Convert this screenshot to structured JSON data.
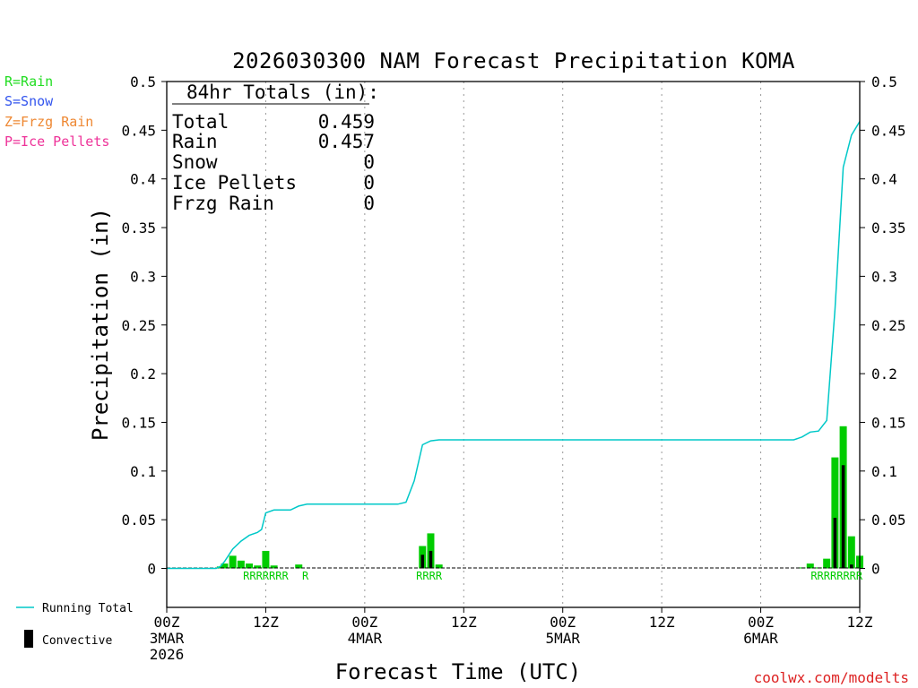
{
  "chart_data": {
    "type": "bar",
    "title": "2026030300 NAM Forecast Precipitation KOMA",
    "xlabel": "Forecast Time (UTC)",
    "ylabel": "Precipitation (in)",
    "ylim": [
      -0.04,
      0.5
    ],
    "xlim_hours": [
      0,
      84
    ],
    "y_ticks": [
      {
        "value": 0,
        "label": "0"
      },
      {
        "value": 0.05,
        "label": "0.05"
      },
      {
        "value": 0.1,
        "label": "0.1"
      },
      {
        "value": 0.15,
        "label": "0.15"
      },
      {
        "value": 0.2,
        "label": "0.2"
      },
      {
        "value": 0.25,
        "label": "0.25"
      },
      {
        "value": 0.3,
        "label": "0.3"
      },
      {
        "value": 0.35,
        "label": "0.35"
      },
      {
        "value": 0.4,
        "label": "0.4"
      },
      {
        "value": 0.45,
        "label": "0.45"
      },
      {
        "value": 0.5,
        "label": "0.5"
      }
    ],
    "x_ticks": [
      {
        "hour": 0,
        "lines": [
          "00Z",
          "3MAR",
          "2026"
        ]
      },
      {
        "hour": 12,
        "lines": [
          "12Z"
        ]
      },
      {
        "hour": 24,
        "lines": [
          "00Z",
          "4MAR"
        ]
      },
      {
        "hour": 36,
        "lines": [
          "12Z"
        ]
      },
      {
        "hour": 48,
        "lines": [
          "00Z",
          "5MAR"
        ]
      },
      {
        "hour": 60,
        "lines": [
          "12Z"
        ]
      },
      {
        "hour": 72,
        "lines": [
          "00Z",
          "6MAR"
        ]
      },
      {
        "hour": 84,
        "lines": [
          "12Z"
        ]
      }
    ],
    "grid_hours": [
      12,
      24,
      36,
      48,
      60,
      72
    ],
    "series": [
      {
        "name": "Rain",
        "color": "#00cc00",
        "points": [
          {
            "hour": 6.5,
            "value": 0.002
          },
          {
            "hour": 7,
            "value": 0.005
          },
          {
            "hour": 8,
            "value": 0.013
          },
          {
            "hour": 9,
            "value": 0.008
          },
          {
            "hour": 10,
            "value": 0.005
          },
          {
            "hour": 11,
            "value": 0.003
          },
          {
            "hour": 12,
            "value": 0.018
          },
          {
            "hour": 13,
            "value": 0.003
          },
          {
            "hour": 16,
            "value": 0.004
          },
          {
            "hour": 31,
            "value": 0.023
          },
          {
            "hour": 32,
            "value": 0.036
          },
          {
            "hour": 33,
            "value": 0.004
          },
          {
            "hour": 77,
            "value": 0.001
          },
          {
            "hour": 78,
            "value": 0.005
          },
          {
            "hour": 79,
            "value": 0.001
          },
          {
            "hour": 80,
            "value": 0.01
          },
          {
            "hour": 81,
            "value": 0.114
          },
          {
            "hour": 82,
            "value": 0.146
          },
          {
            "hour": 83,
            "value": 0.033
          },
          {
            "hour": 84,
            "value": 0.013
          }
        ]
      },
      {
        "name": "Convective",
        "color": "#000000",
        "points": [
          {
            "hour": 31,
            "value": 0.014
          },
          {
            "hour": 32,
            "value": 0.018
          },
          {
            "hour": 81,
            "value": 0.052
          },
          {
            "hour": 82,
            "value": 0.106
          },
          {
            "hour": 83,
            "value": 0.004
          }
        ]
      },
      {
        "name": "Running Total",
        "type": "line",
        "color": "#00c8c8",
        "x": [
          0,
          6,
          6.5,
          7,
          8,
          9,
          10,
          11,
          11.5,
          12,
          13,
          14,
          15,
          16,
          17,
          18,
          24,
          28,
          29,
          30,
          31,
          32,
          33,
          34,
          36,
          48,
          60,
          72,
          76,
          77,
          78,
          79,
          80,
          81,
          82,
          83,
          84
        ],
        "values": [
          0,
          0,
          0.002,
          0.007,
          0.02,
          0.028,
          0.034,
          0.037,
          0.04,
          0.057,
          0.06,
          0.06,
          0.06,
          0.064,
          0.066,
          0.066,
          0.066,
          0.066,
          0.068,
          0.09,
          0.127,
          0.131,
          0.132,
          0.132,
          0.132,
          0.132,
          0.132,
          0.132,
          0.132,
          0.135,
          0.14,
          0.141,
          0.152,
          0.266,
          0.412,
          0.445,
          0.459
        ]
      }
    ],
    "ptype_labels": [
      {
        "hour": 12,
        "text": "RRRRRRR"
      },
      {
        "hour": 16.8,
        "text": "R"
      },
      {
        "hour": 31.8,
        "text": "RRRR"
      },
      {
        "hour": 81.2,
        "text": "RRRRRRRR"
      }
    ]
  },
  "totals": {
    "header": "84hr Totals (in):",
    "rows": [
      {
        "label": "Total",
        "value": "0.459"
      },
      {
        "label": "Rain",
        "value": "0.457"
      },
      {
        "label": "Snow",
        "value": "0"
      },
      {
        "label": "Ice Pellets",
        "value": "0"
      },
      {
        "label": "Frzg Rain",
        "value": "0"
      }
    ]
  },
  "ptype_legend": [
    {
      "text": "R=Rain",
      "color": "#22dd22"
    },
    {
      "text": "S=Snow",
      "color": "#3355ee"
    },
    {
      "text": "Z=Frzg Rain",
      "color": "#ee8833"
    },
    {
      "text": "P=Ice Pellets",
      "color": "#ee3399"
    }
  ],
  "bottom_legend": {
    "running_total": "Running Total",
    "convective": "Convective"
  },
  "credit": "coolwx.com/modelts",
  "colors": {
    "credit": "#dd2222",
    "axis": "#000000",
    "grid": "#999999"
  }
}
